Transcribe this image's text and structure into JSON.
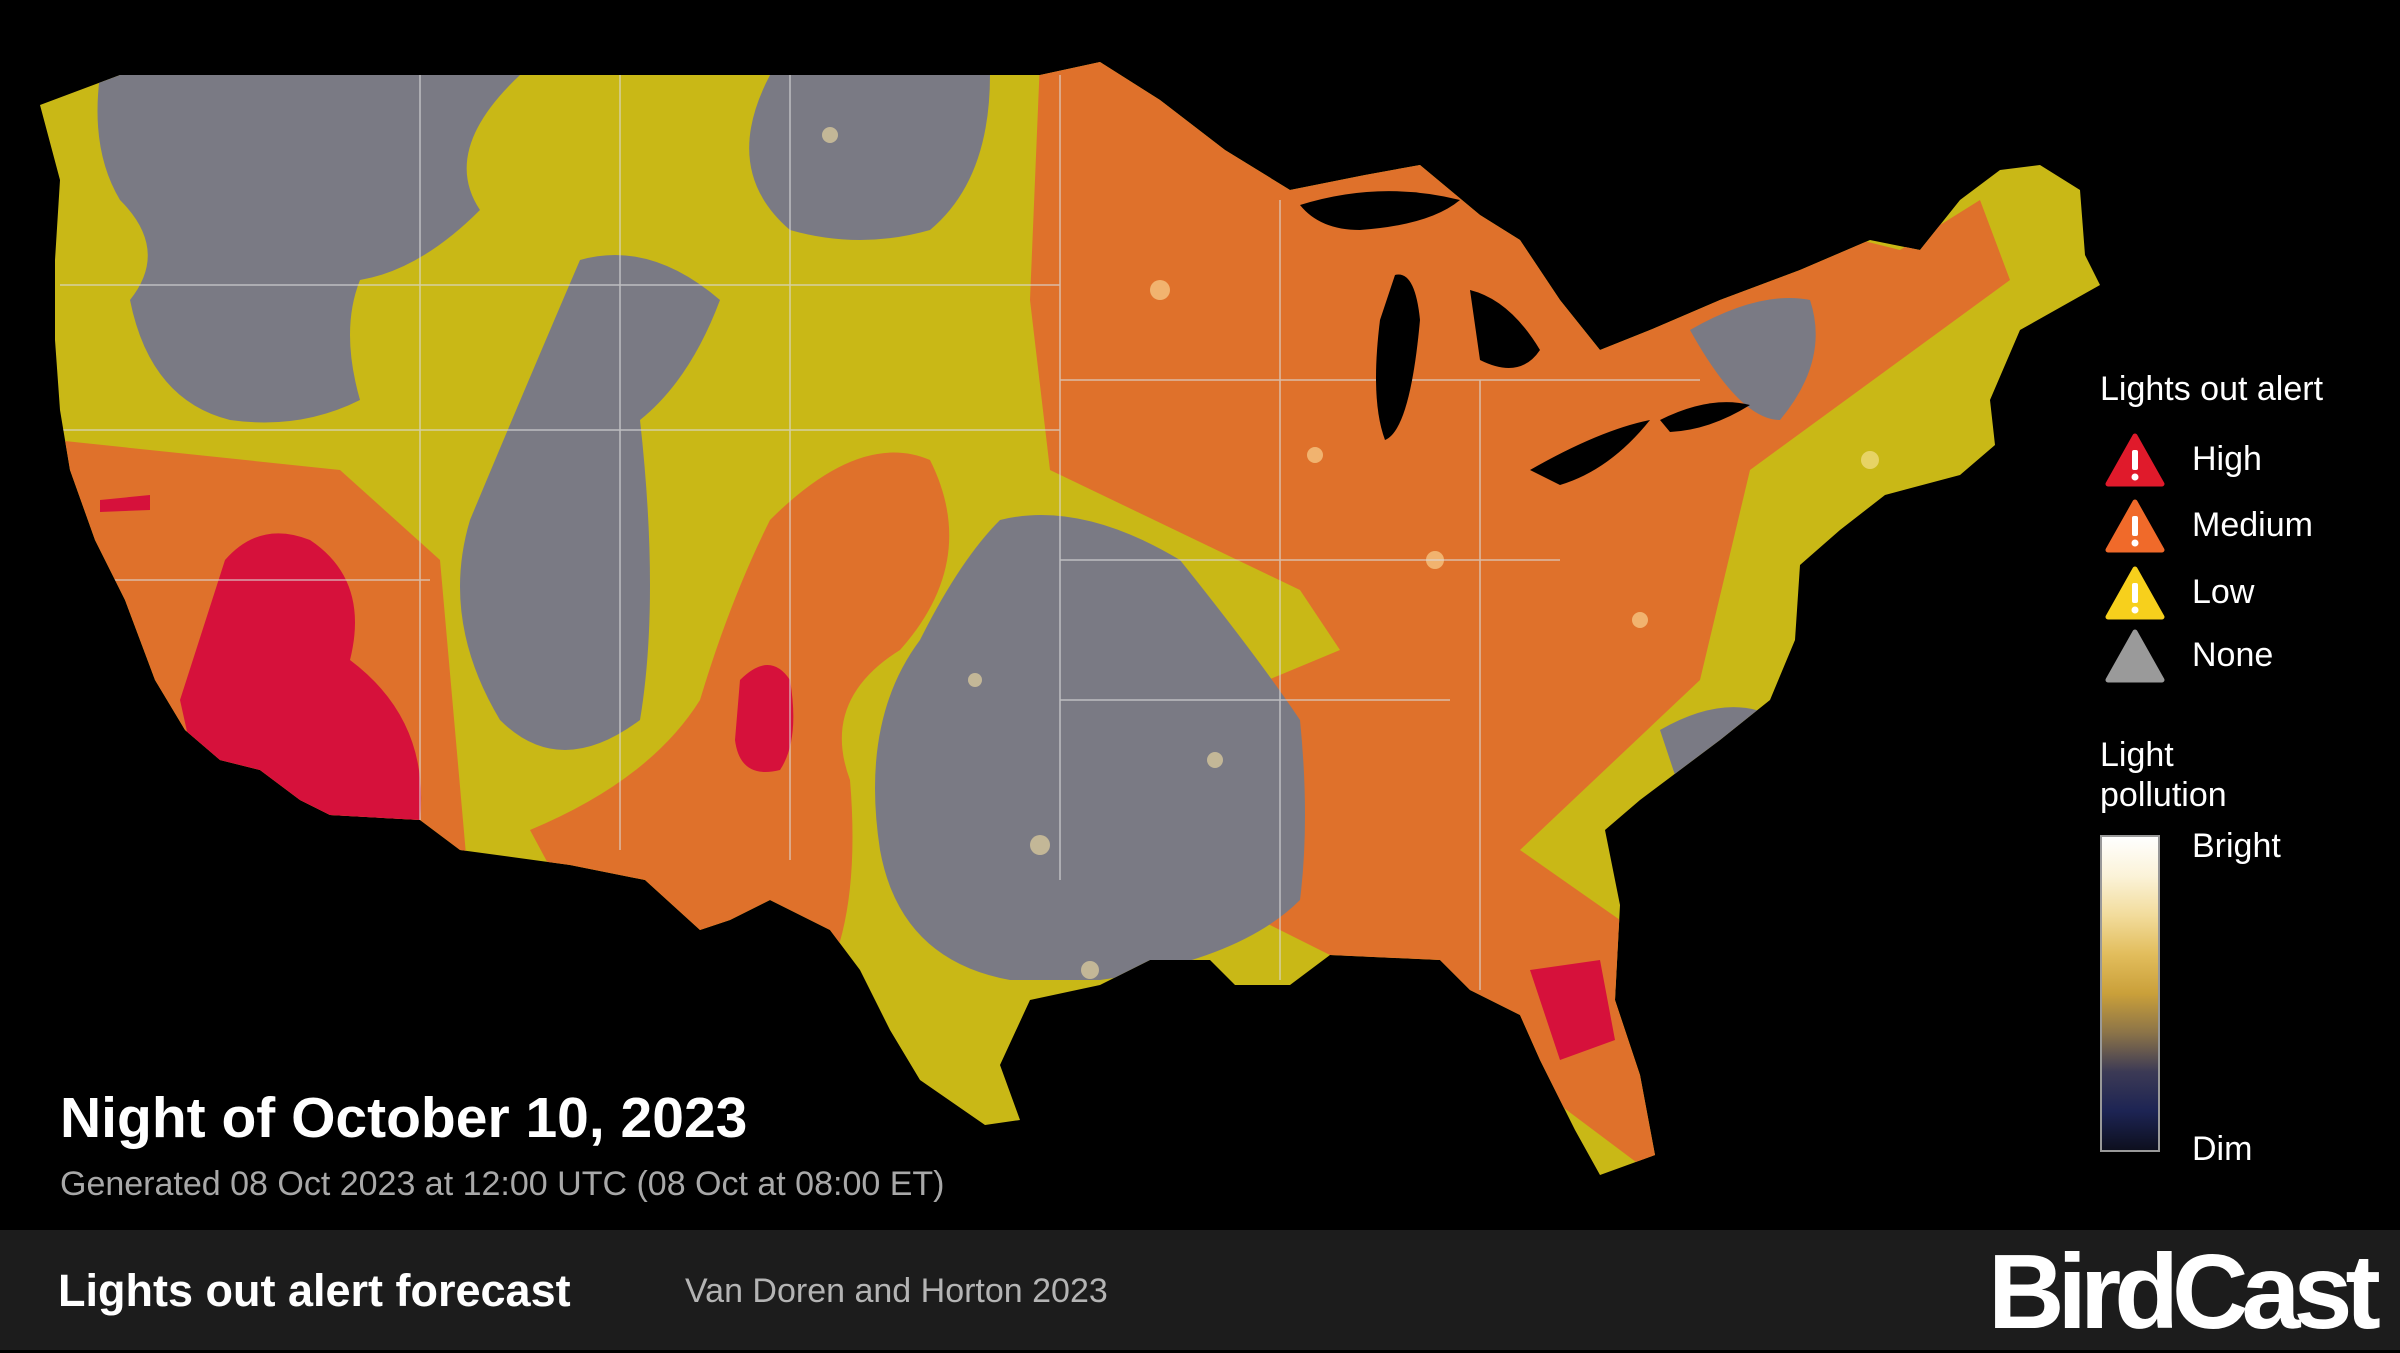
{
  "map": {
    "alert_colors": {
      "high": "#d6113b",
      "medium": "#e0702a",
      "low": "#c9b816",
      "none": "#7a7a84"
    },
    "land_dark": "#4b4b52"
  },
  "title": "Night of October 10, 2023",
  "generated": "Generated 08 Oct 2023 at 12:00 UTC (08 Oct at 08:00 ET)",
  "legend": {
    "title": "Lights out alert",
    "items": [
      {
        "label": "High",
        "color": "#e01a2b",
        "icon": "warning-icon"
      },
      {
        "label": "Medium",
        "color": "#f06a2a",
        "icon": "warning-icon"
      },
      {
        "label": "Low",
        "color": "#f7d01c",
        "icon": "warning-icon"
      },
      {
        "label": "None",
        "color": "#9a9a9a",
        "icon": "triangle-icon"
      }
    ]
  },
  "light_pollution": {
    "title_line1": "Light",
    "title_line2": "pollution",
    "bright_label": "Bright",
    "dim_label": "Dim",
    "gradient": [
      "#ffffff",
      "#fbf3d8",
      "#f2dc9c",
      "#e2bd5c",
      "#caa03a",
      "#8c7448",
      "#3c3a55",
      "#1d2454",
      "#0d0f1e"
    ]
  },
  "footer": {
    "title": "Lights out alert forecast",
    "citation": "Van Doren and Horton 2023",
    "logo": "BirdCast"
  }
}
